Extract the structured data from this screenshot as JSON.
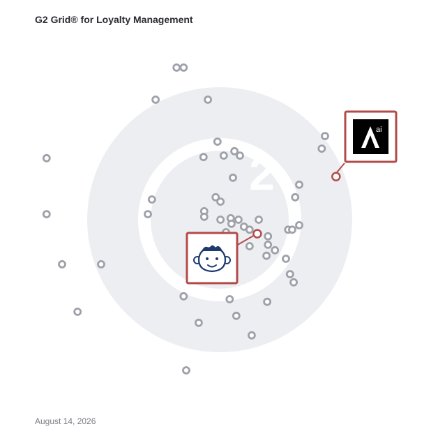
{
  "title": "G2 Grid® for Loyalty Management",
  "date": "August 14, 2026",
  "colors": {
    "frame_top_left": "#7b3fa3",
    "frame_top_right": "#e8593a",
    "frame_bottom_left": "#1aa3d8",
    "frame_bottom_right": "#8a3fa8",
    "highlight": "#b34a4a",
    "point": "#9ea1aa",
    "watermark": "#eceef1"
  },
  "chart_data": {
    "type": "scatter",
    "xlim": [
      0,
      100
    ],
    "ylim": [
      0,
      100
    ],
    "quadrant_split": [
      50,
      50
    ],
    "grid": false,
    "legend": "none",
    "points": [
      [
        38.3,
        91.3
      ],
      [
        40.2,
        91.3
      ],
      [
        32.6,
        82.6
      ],
      [
        46.8,
        82.6
      ],
      [
        3.0,
        66.7
      ],
      [
        3.0,
        51.5
      ],
      [
        7.2,
        37.9
      ],
      [
        11.4,
        25.0
      ],
      [
        17.8,
        37.9
      ],
      [
        31.6,
        55.5
      ],
      [
        30.5,
        51.5
      ],
      [
        45.6,
        67.0
      ],
      [
        49.4,
        71.2
      ],
      [
        51.1,
        67.4
      ],
      [
        54.0,
        68.6
      ],
      [
        55.5,
        67.4
      ],
      [
        53.6,
        61.4
      ],
      [
        48.9,
        56.1
      ],
      [
        50.2,
        54.9
      ],
      [
        45.8,
        52.3
      ],
      [
        45.8,
        50.8
      ],
      [
        50.2,
        50.0
      ],
      [
        53.0,
        50.4
      ],
      [
        53.2,
        48.9
      ],
      [
        55.1,
        50.0
      ],
      [
        56.6,
        48.1
      ],
      [
        58.1,
        47.3
      ],
      [
        60.6,
        50.0
      ],
      [
        51.7,
        46.6
      ],
      [
        50.2,
        43.6
      ],
      [
        53.2,
        39.0
      ],
      [
        58.1,
        42.8
      ],
      [
        63.1,
        45.5
      ],
      [
        63.1,
        43.2
      ],
      [
        62.7,
        40.2
      ],
      [
        65.0,
        41.7
      ],
      [
        68.6,
        47.3
      ],
      [
        69.7,
        47.3
      ],
      [
        71.6,
        48.5
      ],
      [
        70.5,
        56.1
      ],
      [
        71.6,
        59.5
      ],
      [
        68.0,
        39.4
      ],
      [
        69.1,
        35.2
      ],
      [
        70.1,
        33.0
      ],
      [
        42.0,
        39.4
      ],
      [
        40.2,
        29.2
      ],
      [
        52.7,
        28.4
      ],
      [
        62.9,
        27.7
      ],
      [
        44.3,
        22.0
      ],
      [
        54.5,
        23.9
      ],
      [
        58.7,
        18.6
      ],
      [
        40.9,
        9.1
      ],
      [
        77.7,
        69.3
      ],
      [
        78.6,
        72.7
      ]
    ],
    "highlighted": [
      {
        "x": 81.6,
        "y": 61.7,
        "logo": "antavo-logo-icon",
        "logo_text": "ai"
      },
      {
        "x": 60.2,
        "y": 46.2,
        "logo": "monkey-face-logo-icon"
      }
    ]
  }
}
